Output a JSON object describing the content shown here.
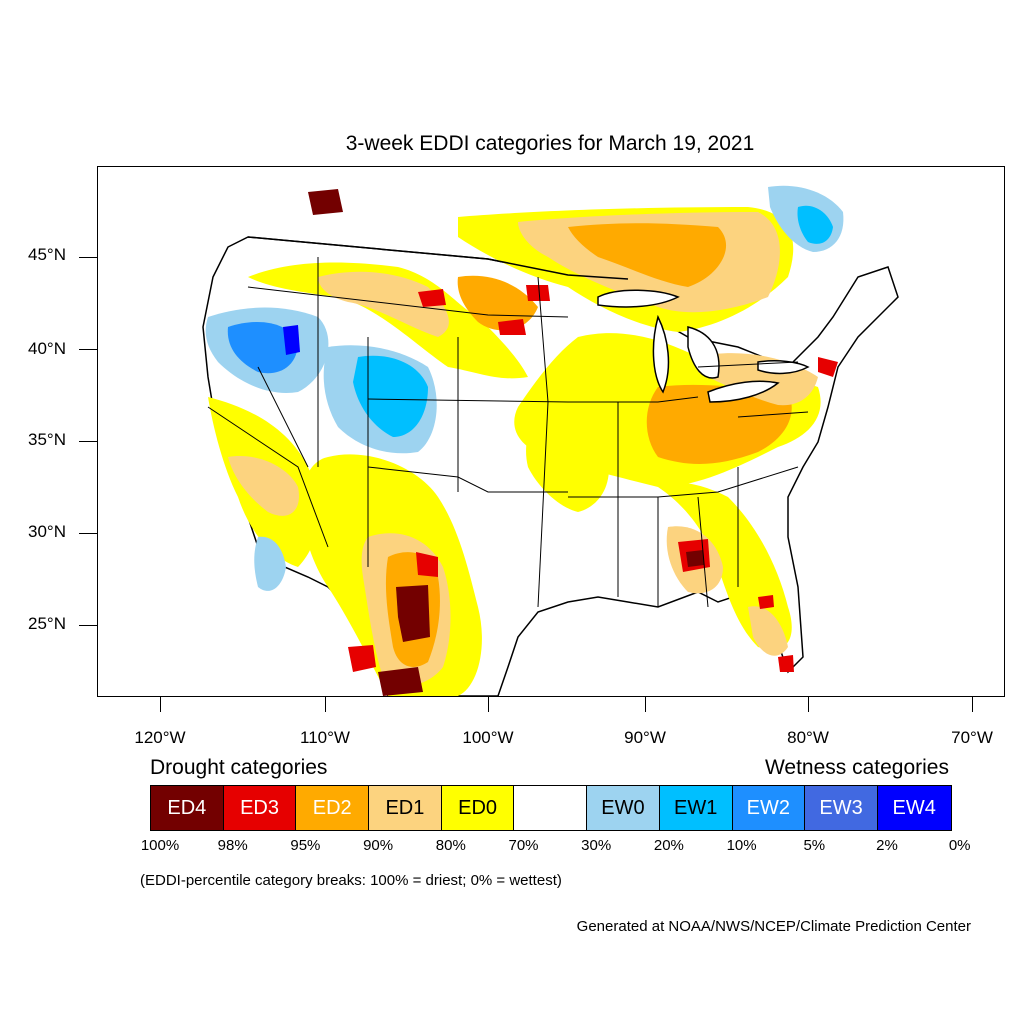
{
  "title": "3-week EDDI categories for March 19, 2021",
  "lat_labels": [
    "45°N",
    "40°N",
    "35°N",
    "30°N",
    "25°N"
  ],
  "lon_labels": [
    "120°W",
    "110°W",
    "100°W",
    "90°W",
    "80°W",
    "70°W"
  ],
  "legend": {
    "drought_title": "Drought categories",
    "wetness_title": "Wetness categories",
    "categories": [
      {
        "label": "ED4",
        "color": "#730000",
        "text_color": "#ffffff"
      },
      {
        "label": "ED3",
        "color": "#e60000",
        "text_color": "#ffffff"
      },
      {
        "label": "ED2",
        "color": "#ffaa00",
        "text_color": "#ffffff"
      },
      {
        "label": "ED1",
        "color": "#fcd37f",
        "text_color": "#000000"
      },
      {
        "label": "ED0",
        "color": "#ffff00",
        "text_color": "#000000"
      },
      {
        "label": "",
        "color": "#ffffff",
        "text_color": "#000000"
      },
      {
        "label": "EW0",
        "color": "#9dd3f0",
        "text_color": "#000000"
      },
      {
        "label": "EW1",
        "color": "#00bfff",
        "text_color": "#000000"
      },
      {
        "label": "EW2",
        "color": "#1e8fff",
        "text_color": "#ffffff"
      },
      {
        "label": "EW3",
        "color": "#4169e1",
        "text_color": "#ffffff"
      },
      {
        "label": "EW4",
        "color": "#0000ff",
        "text_color": "#ffffff"
      }
    ],
    "percent_breaks": [
      "100%",
      "98%",
      "95%",
      "90%",
      "80%",
      "70%",
      "30%",
      "20%",
      "10%",
      "5%",
      "2%",
      "0%"
    ]
  },
  "footnote": "(EDDI-percentile category breaks: 100% = driest; 0% = wettest)",
  "credit": "Generated at NOAA/NWS/NCEP/Climate Prediction Center"
}
